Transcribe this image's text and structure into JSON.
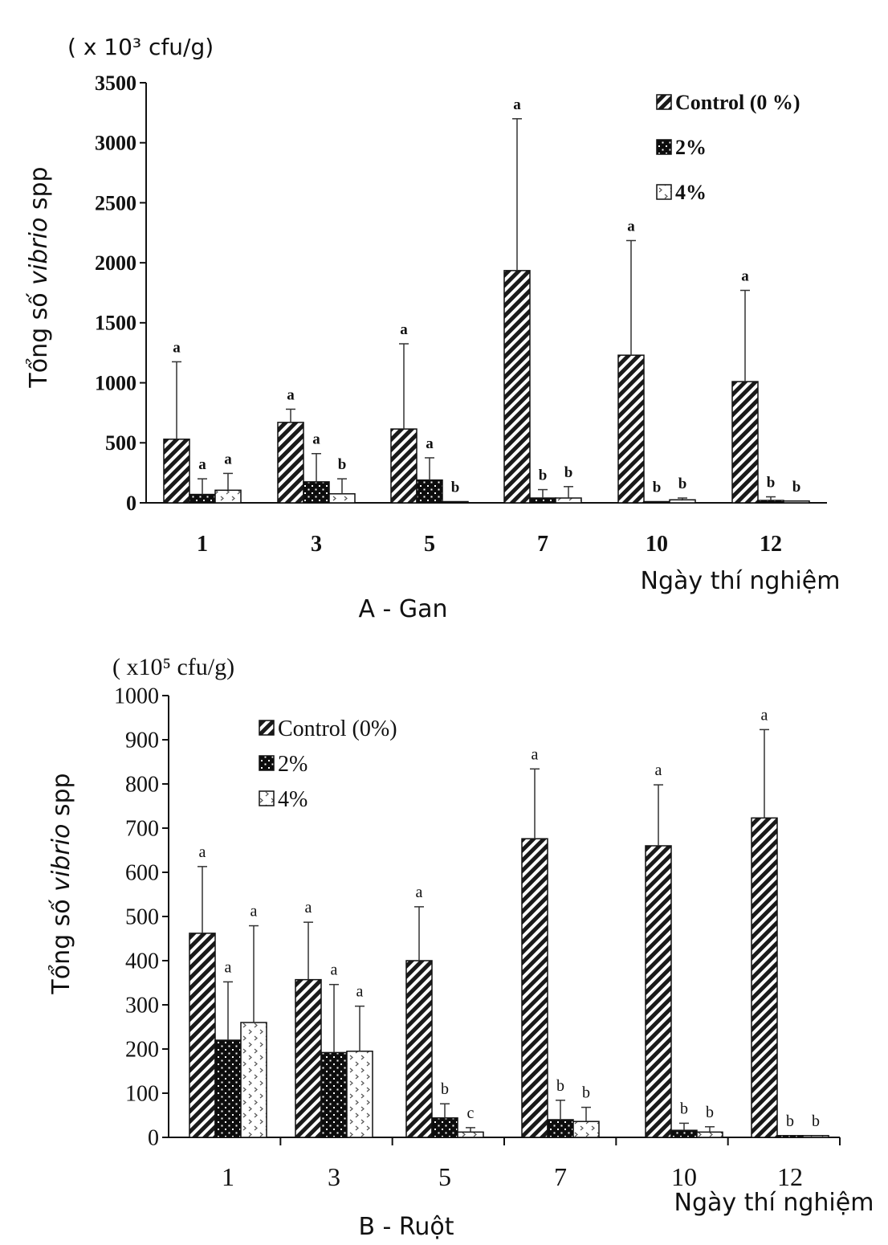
{
  "chart_data": [
    {
      "type": "bar",
      "unit_label": "( x 10³ cfu/g)",
      "ylabel_prefix": "Tổng số ",
      "ylabel_italic": "vibrio",
      "ylabel_suffix": " spp",
      "xlabel": "Ngày thí nghiệm",
      "caption": "A - Gan",
      "ylim": [
        0,
        3500
      ],
      "yticks": [
        "0",
        "500",
        "1000",
        "1500",
        "2000",
        "2500",
        "3000",
        "3500"
      ],
      "categories": [
        "1",
        "3",
        "5",
        "7",
        "10",
        "12"
      ],
      "legend_position": "top-right",
      "series": [
        {
          "name": "Control (0 %)",
          "values": [
            530,
            670,
            615,
            1935,
            1230,
            1010
          ],
          "errors": [
            645,
            110,
            710,
            1265,
            955,
            760
          ],
          "letters": [
            "a",
            "a",
            "a",
            "a",
            "a",
            "a"
          ]
        },
        {
          "name": "2%",
          "values": [
            70,
            175,
            190,
            40,
            10,
            20
          ],
          "errors": [
            130,
            235,
            185,
            70,
            0,
            30
          ],
          "letters": [
            "a",
            "a",
            "a",
            "b",
            "b",
            "b"
          ]
        },
        {
          "name": "4%",
          "values": [
            105,
            75,
            10,
            40,
            25,
            15
          ],
          "errors": [
            140,
            125,
            0,
            95,
            15,
            0
          ],
          "letters": [
            "a",
            "b",
            "b",
            "b",
            "b",
            "b"
          ]
        }
      ]
    },
    {
      "type": "bar",
      "unit_label": "( x10⁵ cfu/g)",
      "ylabel_prefix": "Tổng số ",
      "ylabel_italic": "vibrio",
      "ylabel_suffix": " spp",
      "xlabel": "Ngày thí nghiệm",
      "caption": "B - Ruột",
      "ylim": [
        0,
        1000
      ],
      "yticks": [
        "0",
        "100",
        "200",
        "300",
        "400",
        "500",
        "600",
        "700",
        "800",
        "900",
        "1000"
      ],
      "categories": [
        "1",
        "3",
        "5",
        "7",
        "10",
        "12"
      ],
      "legend_position": "top-left",
      "series": [
        {
          "name": "Control (0%)",
          "values": [
            462,
            357,
            400,
            676,
            660,
            723
          ],
          "errors": [
            151,
            130,
            122,
            158,
            138,
            200
          ],
          "letters": [
            "a",
            "a",
            "a",
            "a",
            "a",
            "a"
          ]
        },
        {
          "name": "2%",
          "values": [
            220,
            192,
            44,
            40,
            16,
            4
          ],
          "errors": [
            132,
            154,
            32,
            44,
            16,
            0
          ],
          "letters": [
            "a",
            "a",
            "b",
            "b",
            "b",
            "b"
          ]
        },
        {
          "name": "4%",
          "values": [
            260,
            195,
            12,
            36,
            12,
            4
          ],
          "errors": [
            219,
            102,
            10,
            32,
            12,
            0
          ],
          "letters": [
            "a",
            "a",
            "c",
            "b",
            "b",
            "b"
          ]
        }
      ]
    }
  ]
}
